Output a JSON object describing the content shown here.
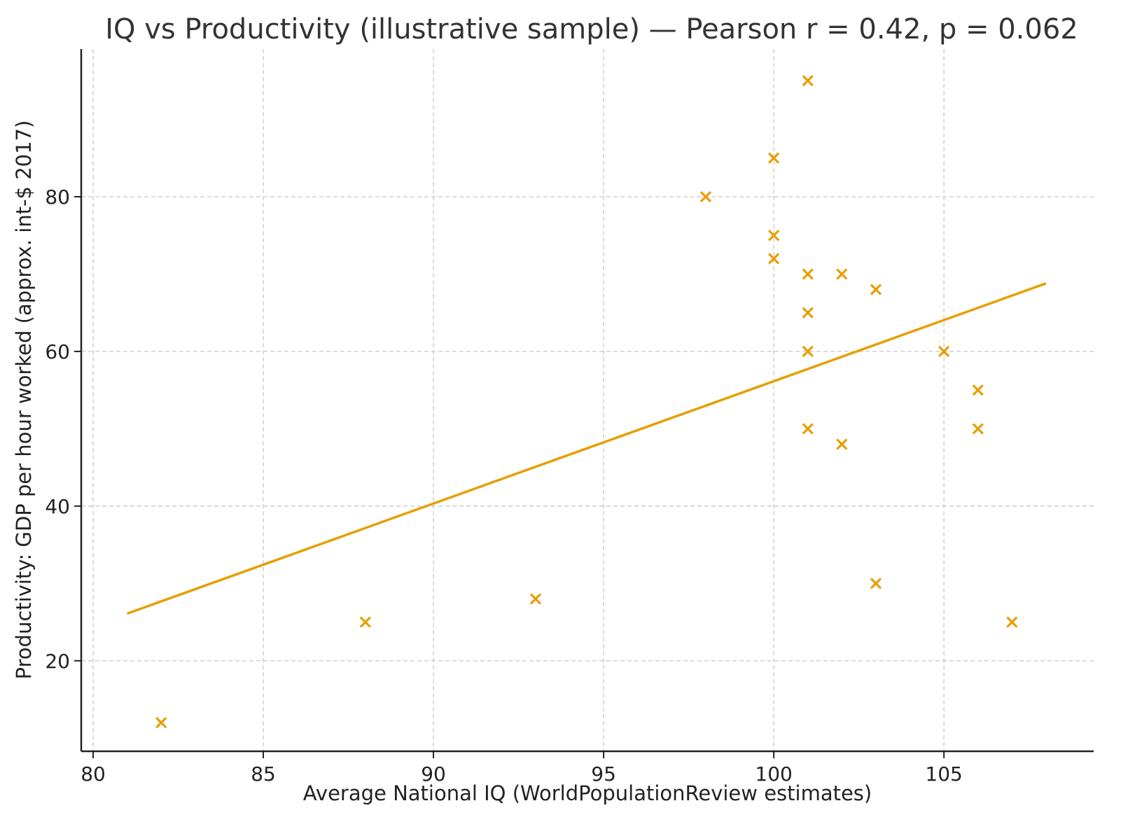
{
  "chart_data": {
    "type": "scatter",
    "title": "IQ vs Productivity (illustrative sample) — Pearson r = 0.42, p = 0.062",
    "xlabel": "Average National IQ (WorldPopulationReview estimates)",
    "ylabel": "Productivity: GDP per hour worked (approx. int-$ 2017)",
    "xlim": [
      79.65,
      109.4
    ],
    "ylim": [
      8.3,
      99.1
    ],
    "xticks": [
      80,
      85,
      90,
      95,
      100,
      105
    ],
    "yticks": [
      20,
      40,
      60,
      80
    ],
    "grid": true,
    "color": "#E69F00",
    "marker": "x",
    "points": [
      [
        82,
        12
      ],
      [
        88,
        25
      ],
      [
        93,
        28
      ],
      [
        98,
        80
      ],
      [
        100,
        85
      ],
      [
        100,
        75
      ],
      [
        100,
        72
      ],
      [
        101,
        95
      ],
      [
        101,
        70
      ],
      [
        101,
        65
      ],
      [
        101,
        60
      ],
      [
        101,
        50
      ],
      [
        102,
        70
      ],
      [
        102,
        48
      ],
      [
        103,
        68
      ],
      [
        103,
        30
      ],
      [
        105,
        60
      ],
      [
        106,
        55
      ],
      [
        106,
        50
      ],
      [
        107,
        25
      ]
    ],
    "fit_line": {
      "x": [
        81,
        108
      ],
      "y": [
        26.1,
        68.8
      ]
    }
  }
}
